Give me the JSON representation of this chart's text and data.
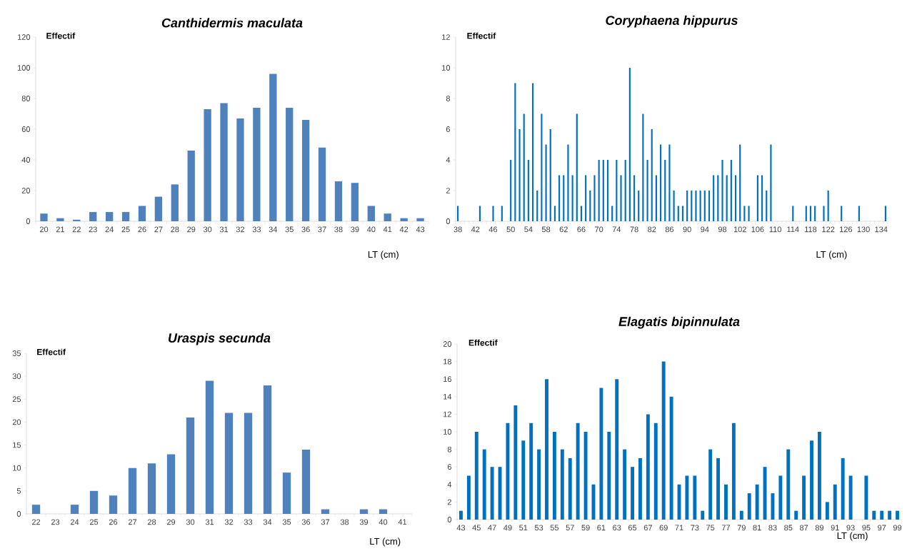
{
  "chart_data": [
    {
      "type": "bar",
      "title": "Canthidermis maculata",
      "xlabel": "LT (cm)",
      "ylabel": "Effectif",
      "color": "#4f81bd",
      "categories": [
        "20",
        "21",
        "22",
        "23",
        "24",
        "25",
        "26",
        "27",
        "28",
        "29",
        "30",
        "31",
        "32",
        "33",
        "34",
        "35",
        "36",
        "37",
        "38",
        "39",
        "40",
        "41",
        "42",
        "43"
      ],
      "values": [
        5,
        2,
        1,
        6,
        6,
        6,
        10,
        16,
        24,
        46,
        73,
        77,
        67,
        74,
        96,
        74,
        66,
        48,
        26,
        25,
        10,
        5,
        2,
        2
      ],
      "ylim": [
        0,
        120
      ],
      "yticks": [
        0,
        20,
        40,
        60,
        80,
        100,
        120
      ]
    },
    {
      "type": "bar",
      "title": "Coryphaena hippurus",
      "xlabel": "LT (cm)",
      "ylabel": "Effectif",
      "color": "#0070c0",
      "categories": [
        "38",
        null,
        null,
        null,
        "42",
        null,
        null,
        null,
        "46",
        null,
        null,
        null,
        "50",
        null,
        null,
        null,
        "54",
        null,
        null,
        null,
        "58",
        null,
        null,
        null,
        "62",
        null,
        null,
        null,
        "66",
        null,
        null,
        null,
        "70",
        null,
        null,
        null,
        "74",
        null,
        null,
        null,
        "78",
        null,
        null,
        null,
        "82",
        null,
        null,
        null,
        "86",
        null,
        null,
        null,
        "90",
        null,
        null,
        null,
        "94",
        null,
        null,
        null,
        "98",
        null,
        null,
        null,
        "102",
        null,
        null,
        null,
        "106",
        null,
        null,
        null,
        "110",
        null,
        null,
        null,
        "114",
        null,
        null,
        null,
        "118",
        null,
        null,
        null,
        "122",
        null,
        null,
        null,
        "126",
        null,
        null,
        null,
        "130",
        null,
        null,
        null,
        "134",
        null
      ],
      "values": [
        1,
        0,
        0,
        0,
        0,
        1,
        0,
        0,
        1,
        0,
        1,
        0,
        4,
        9,
        6,
        7,
        4,
        9,
        2,
        7,
        5,
        6,
        1,
        3,
        3,
        5,
        3,
        7,
        1,
        3,
        2,
        3,
        4,
        4,
        4,
        1,
        4,
        3,
        4,
        10,
        3,
        2,
        7,
        4,
        6,
        3,
        5,
        4,
        5,
        2,
        1,
        1,
        2,
        2,
        2,
        2,
        2,
        2,
        3,
        3,
        4,
        3,
        4,
        3,
        5,
        1,
        1,
        0,
        3,
        3,
        2,
        5,
        0,
        0,
        0,
        0,
        1,
        0,
        0,
        1,
        1,
        1,
        0,
        1,
        2,
        0,
        0,
        1,
        0,
        0,
        0,
        1,
        0,
        0,
        0,
        0,
        0,
        1
      ],
      "ylim": [
        0,
        12
      ],
      "yticks": [
        0,
        2,
        4,
        6,
        8,
        10,
        12
      ]
    },
    {
      "type": "bar",
      "title": "Uraspis secunda",
      "xlabel": "LT (cm)",
      "ylabel": "Effectif",
      "color": "#4f81bd",
      "categories": [
        "22",
        "23",
        "24",
        "25",
        "26",
        "27",
        "28",
        "29",
        "30",
        "31",
        "32",
        "33",
        "34",
        "35",
        "36",
        "37",
        "38",
        "39",
        "40",
        "41"
      ],
      "values": [
        2,
        0,
        2,
        5,
        4,
        10,
        11,
        13,
        21,
        29,
        22,
        22,
        28,
        9,
        14,
        1,
        0,
        1,
        1,
        0
      ],
      "ylim": [
        0,
        35
      ],
      "yticks": [
        0,
        5,
        10,
        15,
        20,
        25,
        30,
        35
      ]
    },
    {
      "type": "bar",
      "title": "Elagatis bipinnulata",
      "xlabel": "LT (cm)",
      "ylabel": "Effectif",
      "color": "#0070c0",
      "categories": [
        "43",
        null,
        "45",
        null,
        "47",
        null,
        "49",
        null,
        "51",
        null,
        "53",
        null,
        "55",
        null,
        "57",
        null,
        "59",
        null,
        "61",
        null,
        "63",
        null,
        "65",
        null,
        "67",
        null,
        "69",
        null,
        "71",
        null,
        "73",
        null,
        "75",
        null,
        "77",
        null,
        "79",
        null,
        "81",
        null,
        "83",
        null,
        "85",
        null,
        "87",
        null,
        "89",
        null,
        "91",
        null,
        "93",
        null,
        "95",
        null,
        "97",
        null,
        "99"
      ],
      "values": [
        1,
        5,
        10,
        8,
        6,
        6,
        11,
        13,
        9,
        11,
        8,
        16,
        10,
        8,
        7,
        11,
        10,
        4,
        15,
        10,
        16,
        8,
        6,
        7,
        12,
        11,
        18,
        14,
        4,
        5,
        5,
        1,
        8,
        7,
        4,
        11,
        1,
        3,
        4,
        6,
        3,
        5,
        8,
        1,
        5,
        9,
        10,
        2,
        4,
        7,
        5,
        0,
        5,
        1,
        1,
        1,
        1
      ],
      "ylim": [
        0,
        20
      ],
      "yticks": [
        0,
        2,
        4,
        6,
        8,
        10,
        12,
        14,
        16,
        18,
        20
      ]
    }
  ]
}
